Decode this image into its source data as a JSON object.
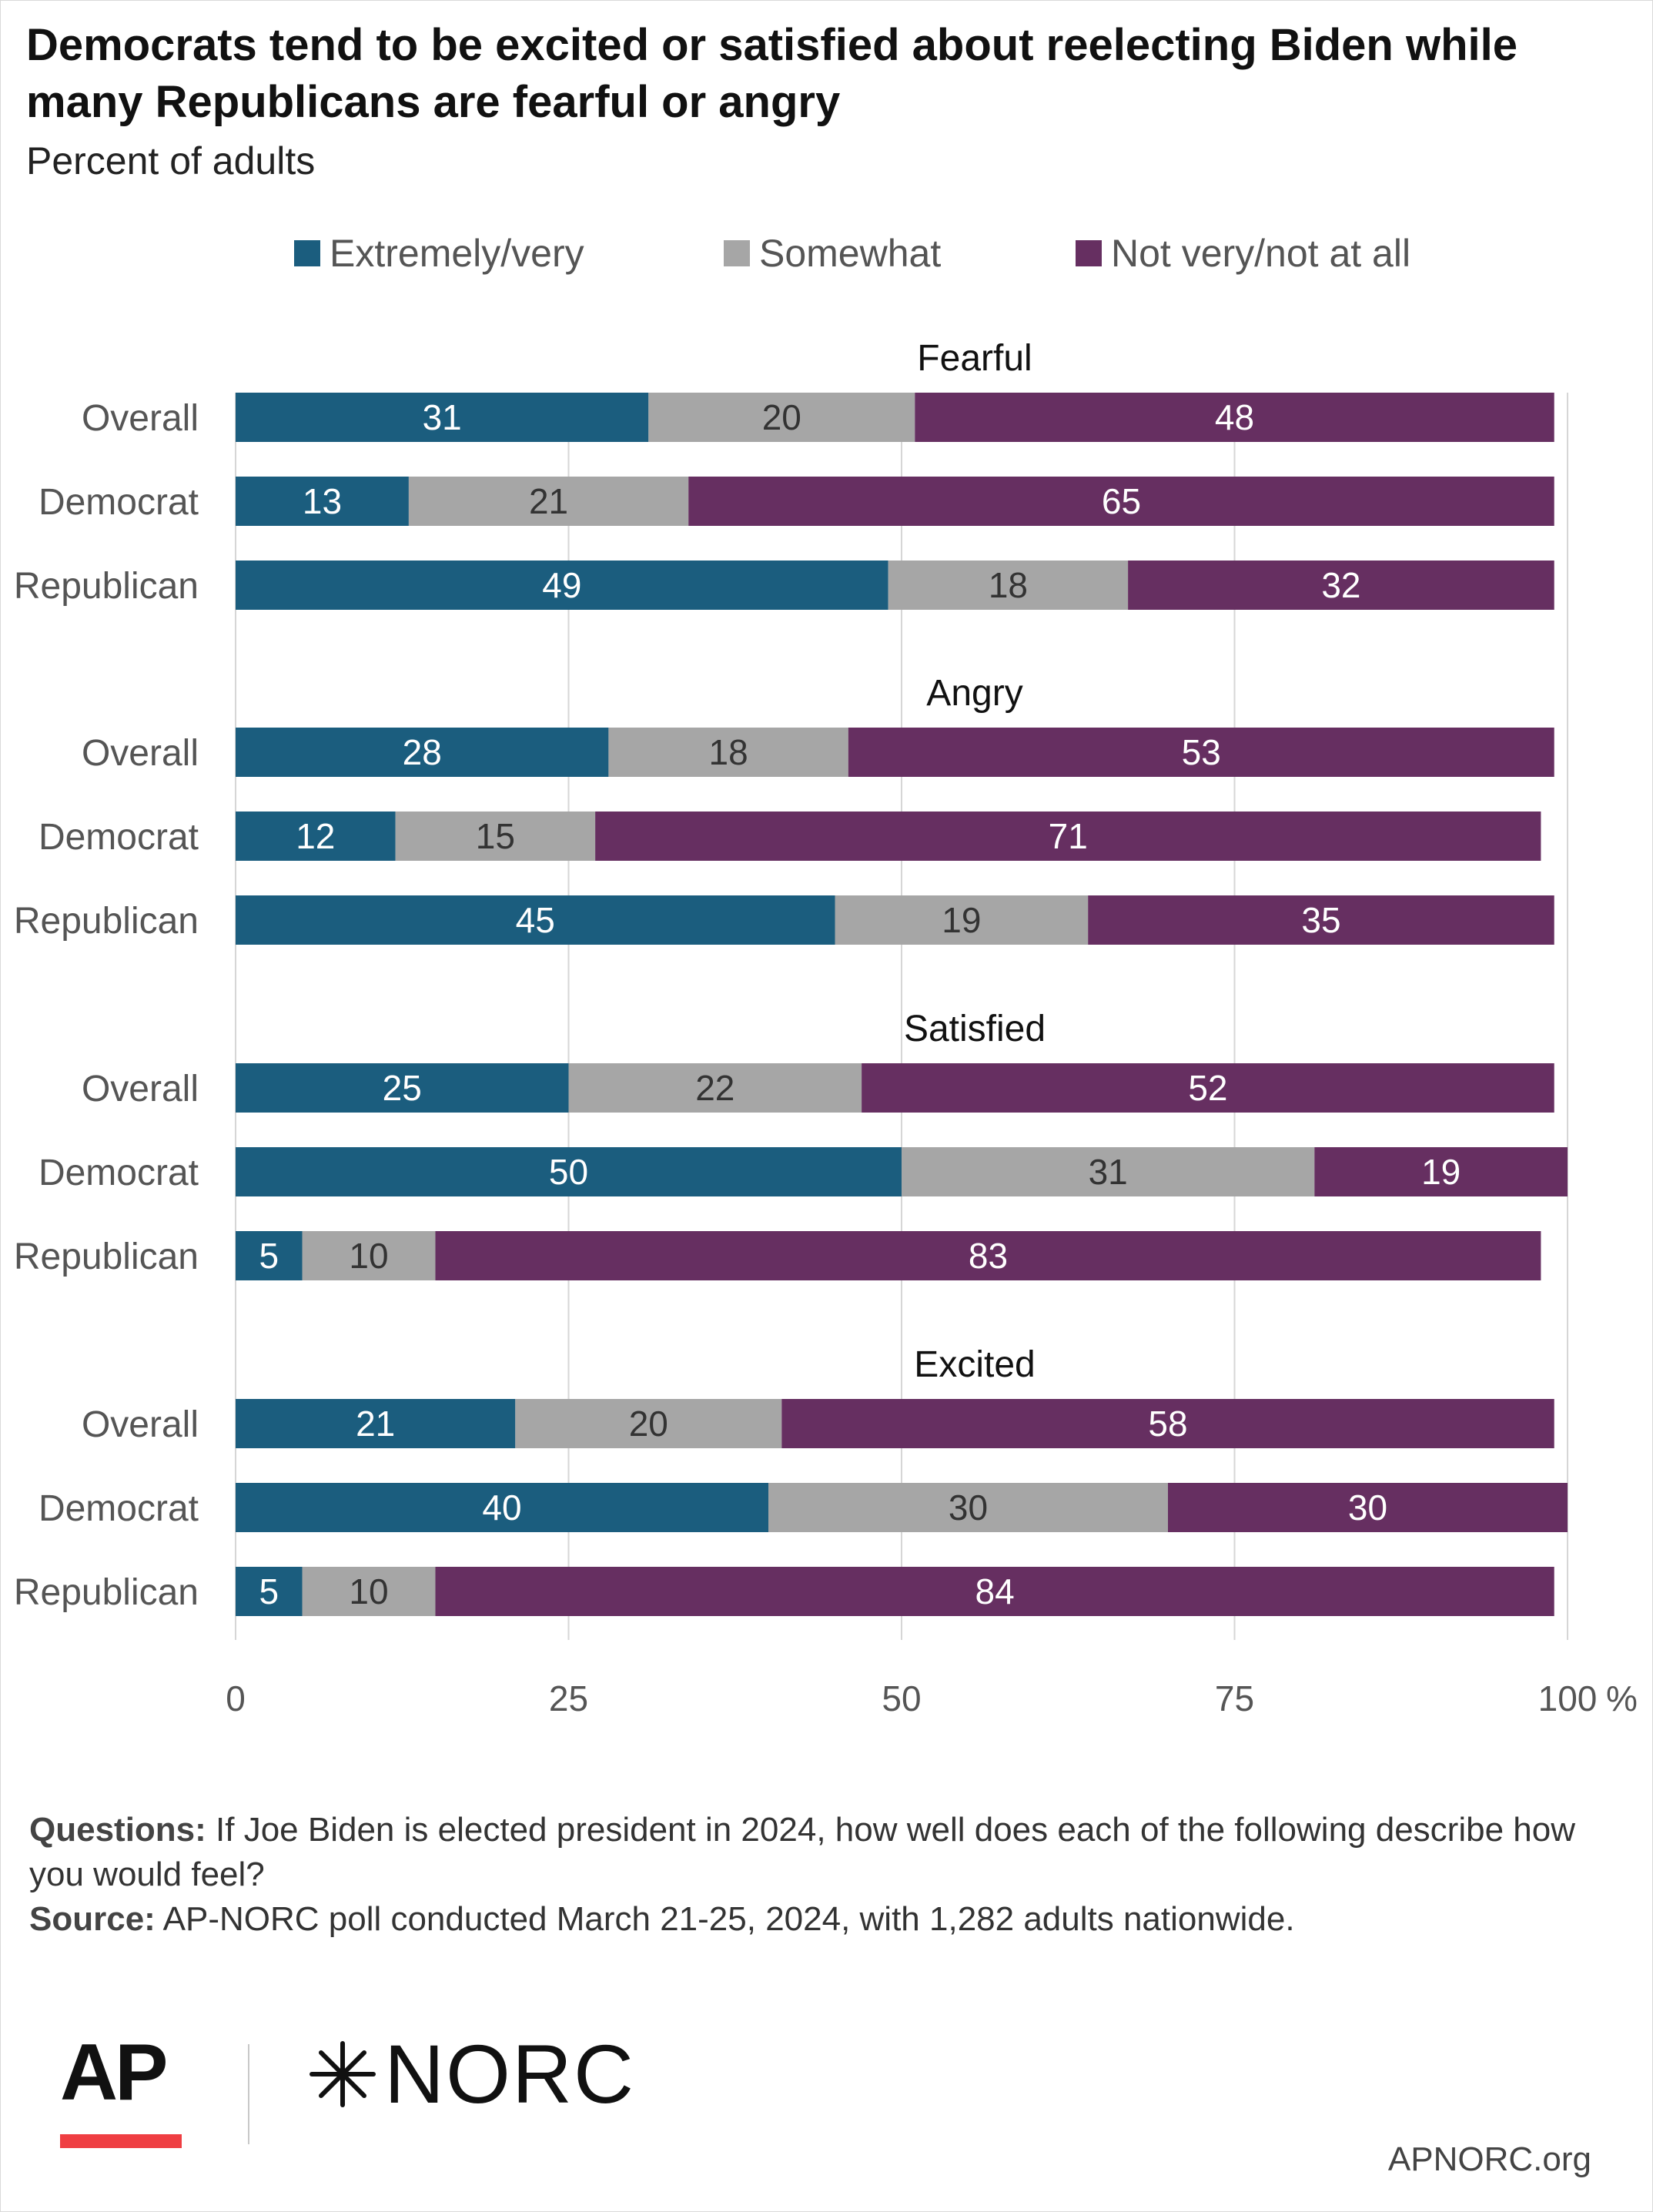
{
  "header": {
    "title": "Democrats tend to be excited or satisfied about reelecting Biden while many Republicans are fearful or angry",
    "subtitle": "Percent of adults"
  },
  "legend": [
    {
      "label": "Extremely/very",
      "color": "#1b5d7e"
    },
    {
      "label": "Somewhat",
      "color": "#a6a6a6"
    },
    {
      "label": "Not very/not at all",
      "color": "#662f61"
    }
  ],
  "chart_data": {
    "type": "bar",
    "orientation": "horizontal",
    "stacked": true,
    "series_names": [
      "Extremely/very",
      "Somewhat",
      "Not very/not at all"
    ],
    "colors": [
      "#1b5d7e",
      "#a6a6a6",
      "#662f61"
    ],
    "groups": [
      {
        "title": "Fearful",
        "rows": [
          {
            "label": "Overall",
            "values": [
              31,
              20,
              48
            ]
          },
          {
            "label": "Democrat",
            "values": [
              13,
              21,
              65
            ]
          },
          {
            "label": "Republican",
            "values": [
              49,
              18,
              32
            ]
          }
        ]
      },
      {
        "title": "Angry",
        "rows": [
          {
            "label": "Overall",
            "values": [
              28,
              18,
              53
            ]
          },
          {
            "label": "Democrat",
            "values": [
              12,
              15,
              71
            ]
          },
          {
            "label": "Republican",
            "values": [
              45,
              19,
              35
            ]
          }
        ]
      },
      {
        "title": "Satisfied",
        "rows": [
          {
            "label": "Overall",
            "values": [
              25,
              22,
              52
            ]
          },
          {
            "label": "Democrat",
            "values": [
              50,
              31,
              19
            ]
          },
          {
            "label": "Republican",
            "values": [
              5,
              10,
              83
            ]
          }
        ]
      },
      {
        "title": "Excited",
        "rows": [
          {
            "label": "Overall",
            "values": [
              21,
              20,
              58
            ]
          },
          {
            "label": "Democrat",
            "values": [
              40,
              30,
              30
            ]
          },
          {
            "label": "Republican",
            "values": [
              5,
              10,
              84
            ]
          }
        ]
      }
    ],
    "xlim": [
      0,
      100
    ],
    "xticks": [
      0,
      25,
      50,
      75,
      100
    ],
    "x_unit": "%",
    "grid": true
  },
  "notes": {
    "questions_label": "Questions:",
    "questions_text": " If Joe Biden is elected president in 2024, how well does each of the following describe how you would feel?",
    "source_label": "Source:",
    "source_text": " AP-NORC poll conducted March 21-25, 2024, with 1,282 adults nationwide."
  },
  "branding": {
    "ap": "AP",
    "norc": "NORC",
    "site": "APNORC.org"
  }
}
